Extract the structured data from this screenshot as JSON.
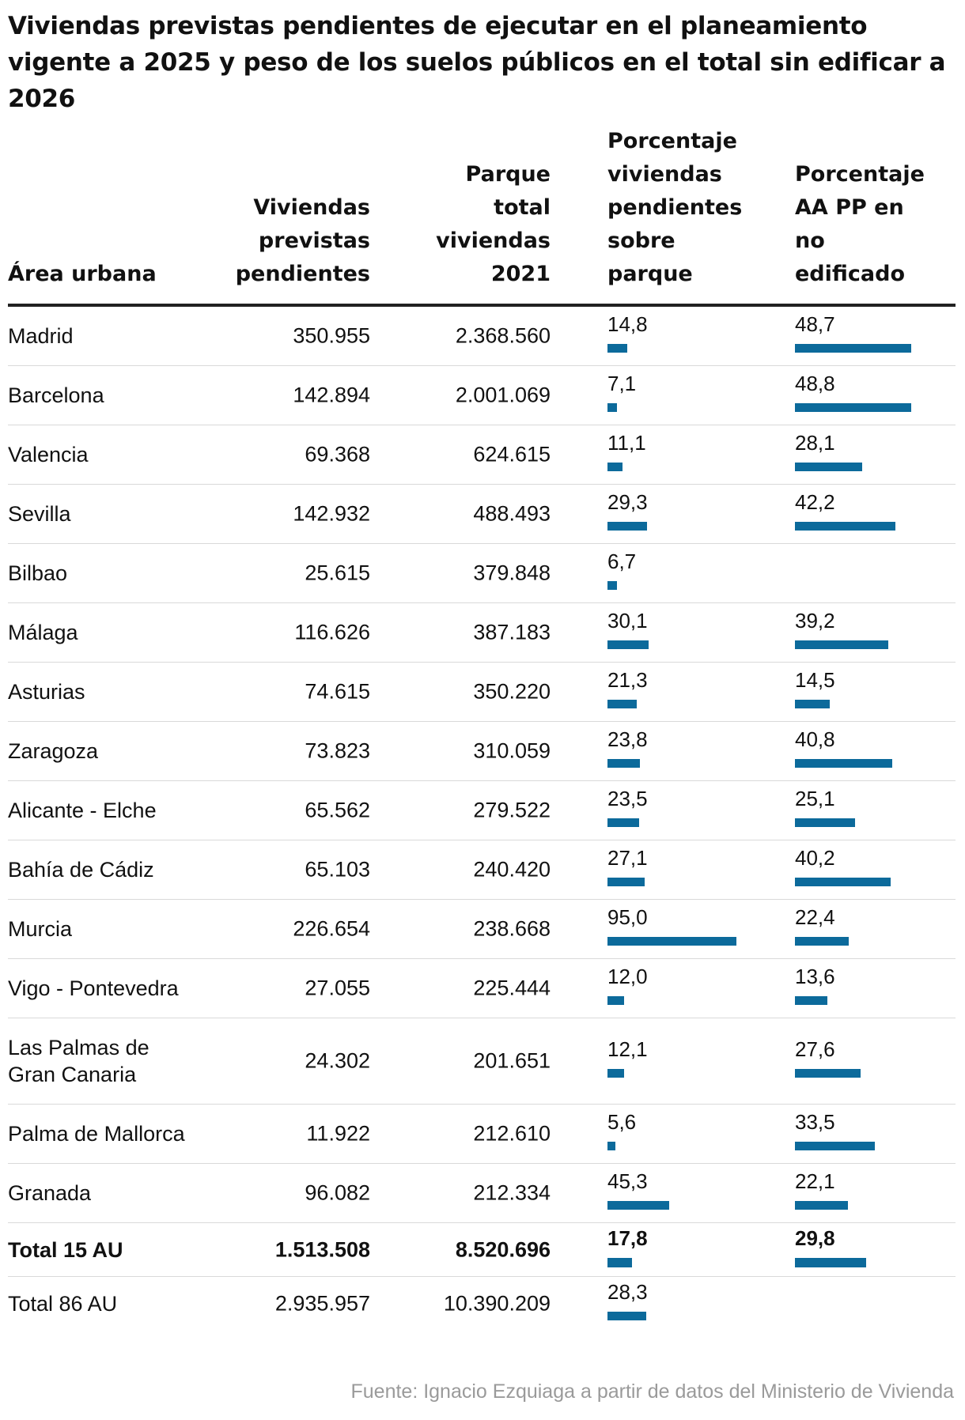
{
  "chart_data": {
    "type": "table",
    "title": "Viviendas previstas pendientes de ejecutar en el planeamiento vigente a 2025 y peso de los suelos públicos en el total sin edificar a 2026",
    "columns": [
      "Área urbana",
      "Viviendas previstas pendientes",
      "Parque total viviendas 2021",
      "Porcentaje viviendas pendientes sobre parque",
      "Porcentaje AA PP en no edificado"
    ],
    "bar_color": "#0c6a9b",
    "bar_max": 100,
    "rows": [
      {
        "area": "Madrid",
        "viviendas": "350.955",
        "parque": "2.368.560",
        "pct_label": "14,8",
        "pct": 14.8,
        "aapp_label": "48,7",
        "aapp": 48.7
      },
      {
        "area": "Barcelona",
        "viviendas": "142.894",
        "parque": "2.001.069",
        "pct_label": "7,1",
        "pct": 7.1,
        "aapp_label": "48,8",
        "aapp": 48.8
      },
      {
        "area": "Valencia",
        "viviendas": "69.368",
        "parque": "624.615",
        "pct_label": "11,1",
        "pct": 11.1,
        "aapp_label": "28,1",
        "aapp": 28.1
      },
      {
        "area": "Sevilla",
        "viviendas": "142.932",
        "parque": "488.493",
        "pct_label": "29,3",
        "pct": 29.3,
        "aapp_label": "42,2",
        "aapp": 42.2
      },
      {
        "area": "Bilbao",
        "viviendas": "25.615",
        "parque": "379.848",
        "pct_label": "6,7",
        "pct": 6.7,
        "aapp_label": "",
        "aapp": null
      },
      {
        "area": "Málaga",
        "viviendas": "116.626",
        "parque": "387.183",
        "pct_label": "30,1",
        "pct": 30.1,
        "aapp_label": "39,2",
        "aapp": 39.2
      },
      {
        "area": "Asturias",
        "viviendas": "74.615",
        "parque": "350.220",
        "pct_label": "21,3",
        "pct": 21.3,
        "aapp_label": "14,5",
        "aapp": 14.5
      },
      {
        "area": "Zaragoza",
        "viviendas": "73.823",
        "parque": "310.059",
        "pct_label": "23,8",
        "pct": 23.8,
        "aapp_label": "40,8",
        "aapp": 40.8
      },
      {
        "area": "Alicante - Elche",
        "viviendas": "65.562",
        "parque": "279.522",
        "pct_label": "23,5",
        "pct": 23.5,
        "aapp_label": "25,1",
        "aapp": 25.1
      },
      {
        "area": "Bahía de Cádiz",
        "viviendas": "65.103",
        "parque": "240.420",
        "pct_label": "27,1",
        "pct": 27.1,
        "aapp_label": "40,2",
        "aapp": 40.2
      },
      {
        "area": "Murcia",
        "viviendas": "226.654",
        "parque": "238.668",
        "pct_label": "95,0",
        "pct": 95.0,
        "aapp_label": "22,4",
        "aapp": 22.4
      },
      {
        "area": "Vigo - Pontevedra",
        "viviendas": "27.055",
        "parque": "225.444",
        "pct_label": "12,0",
        "pct": 12.0,
        "aapp_label": "13,6",
        "aapp": 13.6
      },
      {
        "area": "Las Palmas de\nGran Canaria",
        "viviendas": "24.302",
        "parque": "201.651",
        "pct_label": "12,1",
        "pct": 12.1,
        "aapp_label": "27,6",
        "aapp": 27.6
      },
      {
        "area": "Palma de Mallorca",
        "viviendas": "11.922",
        "parque": "212.610",
        "pct_label": "5,6",
        "pct": 5.6,
        "aapp_label": "33,5",
        "aapp": 33.5
      },
      {
        "area": "Granada",
        "viviendas": "96.082",
        "parque": "212.334",
        "pct_label": "45,3",
        "pct": 45.3,
        "aapp_label": "22,1",
        "aapp": 22.1
      },
      {
        "area": "Total 15 AU",
        "viviendas": "1.513.508",
        "parque": "8.520.696",
        "pct_label": "17,8",
        "pct": 17.8,
        "aapp_label": "29,8",
        "aapp": 29.8,
        "bold": true
      },
      {
        "area": "Total 86 AU",
        "viviendas": "2.935.957",
        "parque": "10.390.209",
        "pct_label": "28,3",
        "pct": 28.3,
        "aapp_label": "",
        "aapp": null
      }
    ]
  },
  "header": {
    "title": "Viviendas previstas pendientes de ejecutar en el planeamiento vigente a 2025 y peso de los suelos públicos en el total sin edificar a 2026",
    "col_area": "Área urbana",
    "col_viviendas": "Viviendas\nprevistas\npendientes",
    "col_parque": "Parque\ntotal\nviviendas\n2021",
    "col_pct": "Porcentaje\nviviendas\npendientes\nsobre\nparque",
    "col_aapp": "Porcentaje\nAA PP en\nno\nedificado"
  },
  "source": "Fuente: Ignacio Ezquiaga a partir de datos del Ministerio de Vivienda"
}
